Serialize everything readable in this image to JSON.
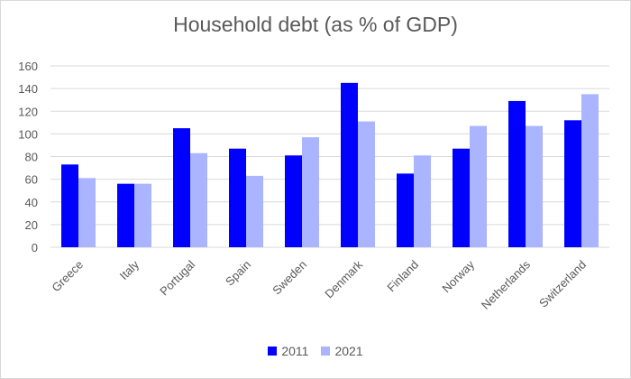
{
  "chart_data": {
    "type": "bar",
    "title": "Household debt (as % of GDP)",
    "xlabel": "",
    "ylabel": "",
    "ylim": [
      0,
      160
    ],
    "yticks": [
      "0",
      "20",
      "40",
      "60",
      "80",
      "100",
      "120",
      "140",
      "160"
    ],
    "grid": true,
    "legend_position": "bottom",
    "categories": [
      "Greece",
      "Italy",
      "Portugal",
      "Spain",
      "Sweden",
      "Denmark",
      "Finland",
      "Norway",
      "Netherlands",
      "Switzerland"
    ],
    "series": [
      {
        "name": "2011",
        "color": "#0000ff",
        "values": [
          73,
          56,
          105,
          87,
          81,
          145,
          65,
          87,
          129,
          112
        ]
      },
      {
        "name": "2021",
        "color": "#aab4ff",
        "values": [
          61,
          56,
          83,
          63,
          97,
          111,
          81,
          107,
          107,
          135
        ]
      }
    ]
  }
}
